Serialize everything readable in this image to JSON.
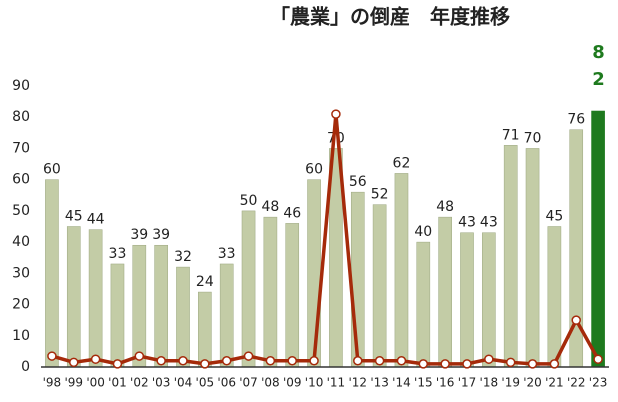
{
  "chart_data": {
    "type": "bar",
    "title": "「農業」の倒産　年度推移",
    "categories": [
      "'98",
      "'99",
      "'00",
      "'01",
      "'02",
      "'03",
      "'04",
      "'05",
      "'06",
      "'07",
      "'08",
      "'09",
      "'10",
      "'11",
      "'12",
      "'13",
      "'14",
      "'15",
      "'16",
      "'17",
      "'18",
      "'19",
      "'20",
      "'21",
      "'22",
      "'23"
    ],
    "values": [
      60,
      45,
      44,
      33,
      39,
      39,
      32,
      24,
      33,
      50,
      48,
      46,
      60,
      70,
      56,
      52,
      62,
      40,
      48,
      43,
      43,
      71,
      70,
      45,
      76,
      82
    ],
    "color": "#c3cca6",
    "colors": [
      "#c3cca6",
      "#c3cca6",
      "#c3cca6",
      "#c3cca6",
      "#c3cca6",
      "#c3cca6",
      "#c3cca6",
      "#c3cca6",
      "#c3cca6",
      "#c3cca6",
      "#c3cca6",
      "#c3cca6",
      "#c3cca6",
      "#c3cca6",
      "#c3cca6",
      "#c3cca6",
      "#c3cca6",
      "#c3cca6",
      "#c3cca6",
      "#c3cca6",
      "#c3cca6",
      "#c3cca6",
      "#c3cca6",
      "#c3cca6",
      "#c3cca6",
      "#1e7a1e"
    ],
    "line": {
      "color": "#a52a0a",
      "values": [
        3.5,
        1.5,
        2.5,
        1,
        3.5,
        2,
        2,
        1,
        2,
        3.5,
        2,
        2,
        2,
        81,
        2,
        2,
        2,
        1,
        1,
        1,
        2.5,
        1.5,
        1,
        1,
        15,
        2.5
      ]
    },
    "ylim": [
      0,
      90
    ],
    "yticks": [
      0,
      10,
      20,
      30,
      40,
      50,
      60,
      70,
      80,
      90
    ],
    "grid": false
  }
}
